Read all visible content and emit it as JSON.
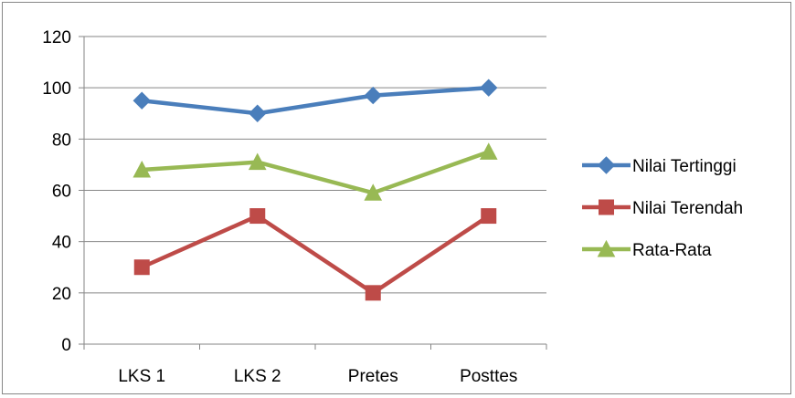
{
  "chart_data": {
    "type": "line",
    "categories": [
      "LKS 1",
      "LKS 2",
      "Pretes",
      "Posttes"
    ],
    "series": [
      {
        "name": "Nilai Tertinggi",
        "values": [
          95,
          90,
          97,
          100
        ],
        "color": "#4a7ebb",
        "marker": "diamond"
      },
      {
        "name": "Nilai Terendah",
        "values": [
          30,
          50,
          20,
          50
        ],
        "color": "#be4b48",
        "marker": "square"
      },
      {
        "name": "Rata-Rata",
        "values": [
          68,
          71,
          59,
          75
        ],
        "color": "#98b954",
        "marker": "triangle"
      }
    ],
    "ylim": [
      0,
      120
    ],
    "yticks": [
      0,
      20,
      40,
      60,
      80,
      100,
      120
    ],
    "grid": true,
    "legend_position": "right"
  }
}
